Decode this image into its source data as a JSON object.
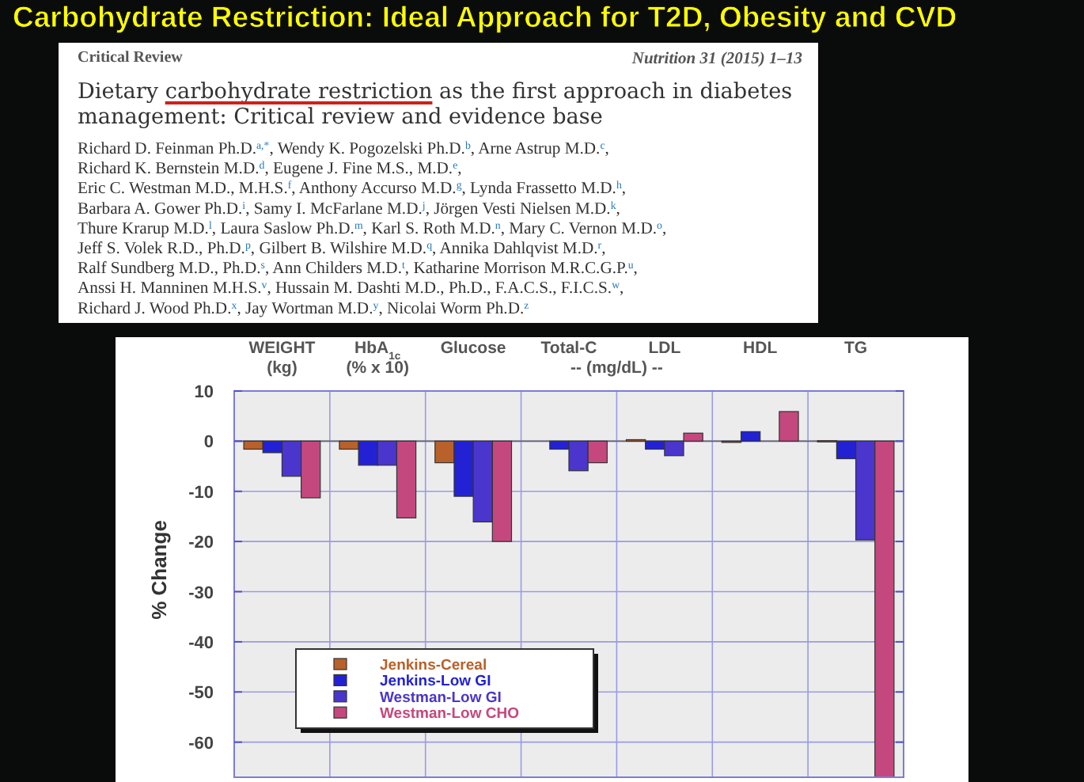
{
  "chart_data": {
    "type": "bar",
    "title": "Carbohydrate Restriction: Ideal Approach for T2D, Obesity and CVD",
    "ylabel": "% Change",
    "categories": [
      "WEIGHT\n(kg)",
      "HbA$_{1c}$\n(% x 10)",
      "Glucose",
      "Total-C",
      "LDL",
      "HDL",
      "TG"
    ],
    "series": [
      {
        "name": "Jenkins-Cereal",
        "color": "#b8612a",
        "values": [
          -1.6,
          -1.6,
          -4.3,
          null,
          0.3,
          -0.2,
          0.1
        ]
      },
      {
        "name": "Jenkins-Low GI",
        "color": "#2222d4",
        "values": [
          -2.3,
          -4.8,
          -11,
          -1.6,
          -1.6,
          1.9,
          -3.5
        ]
      },
      {
        "name": "Westman-Low GI",
        "color": "#4a36cc",
        "values": [
          -7,
          -4.8,
          -16.1,
          -5.9,
          -2.9,
          null,
          -19.7
        ]
      },
      {
        "name": "Westman-Low CHO",
        "color": "#c4487e",
        "values": [
          -11.3,
          -15.3,
          -20,
          -4.3,
          1.6,
          5.9,
          -67
        ]
      }
    ],
    "ylim": [
      -67,
      10
    ],
    "yticks": [
      10,
      0,
      -10,
      -20,
      -30,
      -40,
      -50,
      -60
    ],
    "grid": true,
    "legend": "bottom left",
    "annotations": [
      "Critical Review",
      "Nutrition 31 (2015) 1–13",
      "Dietary carbohydrate restriction as the first approach in diabetes",
      "management: Critical review and evidence base",
      "Richard D. Feinman Ph.D.$^{a,*}$, Wendy K. Pogozelski Ph.D.$^{b}$, Arne Astrup M.D.$^{c}$,",
      "Richard K. Bernstein M.D.$^{d}$, Eugene J. Fine M.S., M.D.$^{e}$,",
      "Eric C. Westman M.D., M.H.S.$^{f}$, Anthony Accurso M.D.$^{g}$, Lynda Frassetto M.D.$^{h}$,",
      "Barbara A. Gower Ph.D.$^{i}$, Samy I. McFarlane M.D.$^{j}$, Jörgen Vesti Nielsen M.D.$^{k}$,",
      "Thure Krarup M.D.$^{l}$, Laura Saslow Ph.D.$^{m}$, Karl S. Roth M.D.$^{n}$, Mary C. Vernon M.D.$^{o}$,",
      "Jeff S. Volek R.D., Ph.D.$^{p}$, Gilbert B. Wilshire M.D.$^{q}$, Annika Dahlqvist M.D.$^{r}$,",
      "Ralf Sundberg M.D., Ph.D.$^{s}$, Ann Childers M.D.$^{t}$, Katharine Morrison M.R.C.G.P.$^{u}$,",
      "Anssi H. Manninen M.H.S.$^{v}$, Hussain M. Dashti M.D., Ph.D., F.A.C.S., F.I.C.S.$^{w}$,",
      "Richard J. Wood Ph.D.$^{x}$, Jay Wortman M.D.$^{y}$, Nicolai Worm Ph.D.$^{z}$",
      "-- (mg/dL) --"
    ]
  }
}
